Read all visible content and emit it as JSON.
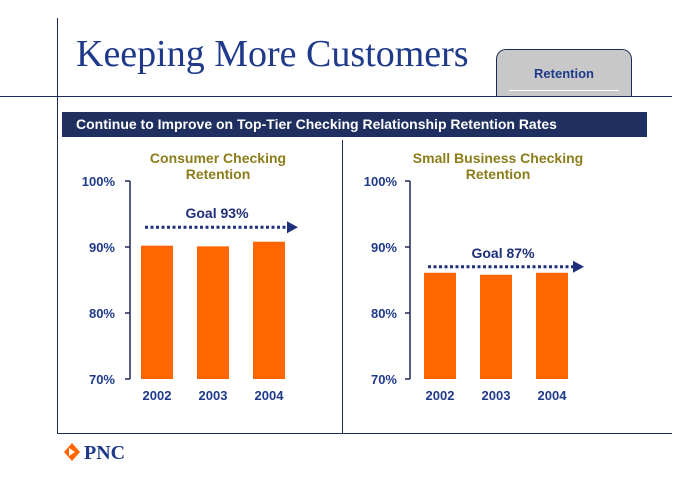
{
  "slide": {
    "title": "Keeping More Customers",
    "tab_label": "Retention",
    "banner": "Continue to Improve on Top-Tier Checking Relationship Retention Rates",
    "logo_text": "PNC"
  },
  "colors": {
    "bar": "#ff6600",
    "chart_title": "#8b7d1a",
    "axis": "#1f2a5a",
    "goal": "#1f2f7a",
    "text_blue": "#1f3a8a"
  },
  "chart_data": [
    {
      "type": "bar",
      "title": [
        "Consumer Checking",
        "Retention"
      ],
      "categories": [
        "2002",
        "2003",
        "2004"
      ],
      "values": [
        90.2,
        90.1,
        90.8
      ],
      "ylim": [
        70,
        100
      ],
      "yticks": [
        100,
        90,
        80,
        70
      ],
      "ytick_labels": [
        "100%",
        "90%",
        "80%",
        "70%"
      ],
      "goal_value": 93,
      "goal_label": "Goal 93%"
    },
    {
      "type": "bar",
      "title": [
        "Small Business Checking",
        "Retention"
      ],
      "categories": [
        "2002",
        "2003",
        "2004"
      ],
      "values": [
        86.1,
        85.8,
        86.1
      ],
      "ylim": [
        70,
        100
      ],
      "yticks": [
        100,
        90,
        80,
        70
      ],
      "ytick_labels": [
        "100%",
        "90%",
        "80%",
        "70%"
      ],
      "goal_value": 87,
      "goal_label": "Goal 87%"
    }
  ]
}
